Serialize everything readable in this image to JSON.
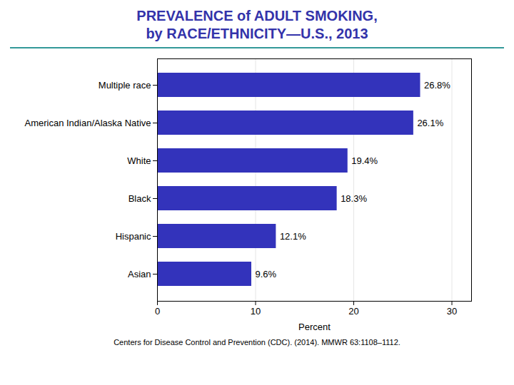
{
  "chart_data": {
    "type": "bar",
    "orientation": "horizontal",
    "title": "PREVALENCE of ADULT SMOKING,\nby RACE/ETHNICITY—U.S., 2013",
    "categories": [
      "Asian",
      "Hispanic",
      "Black",
      "White",
      "American Indian/Alaska Native",
      "Multiple race"
    ],
    "values": [
      9.6,
      12.1,
      18.3,
      19.4,
      26.1,
      26.8
    ],
    "value_labels": [
      "9.6%",
      "12.1%",
      "18.3%",
      "19.4%",
      "26.1%",
      "26.8%"
    ],
    "data_labels": true,
    "color": "#3333BB",
    "xlim": [
      0,
      32
    ],
    "xticks": [
      0,
      10,
      20,
      30
    ],
    "xlabel": "Percent",
    "grid": true,
    "caption": "Centers for Disease Control and Prevention (CDC). (2014). MMWR 63:1108–1112."
  }
}
